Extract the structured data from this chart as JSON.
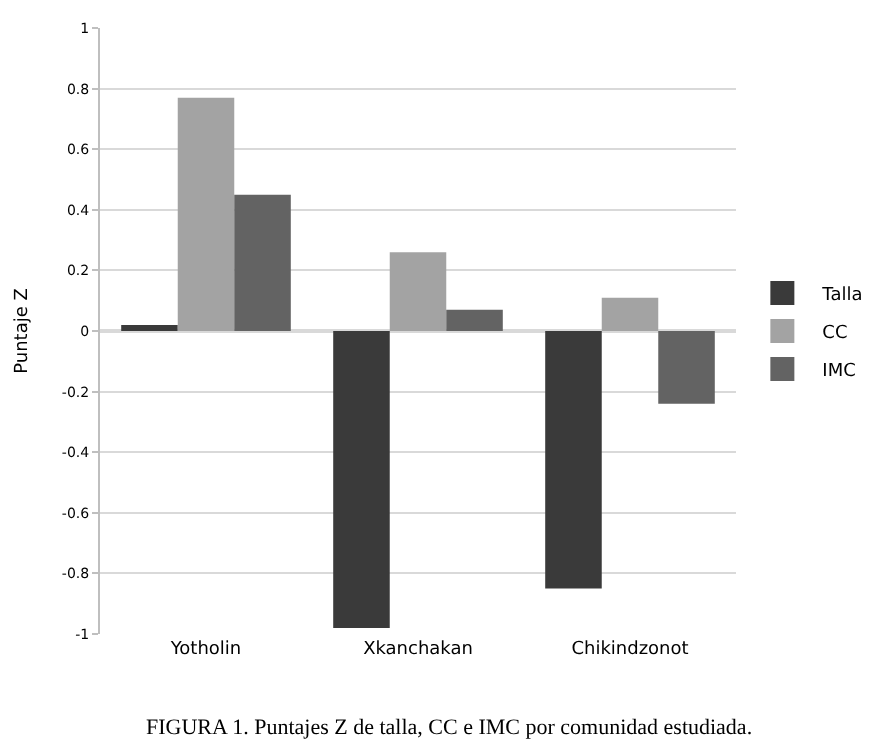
{
  "chart_data": {
    "type": "bar",
    "ylabel": "Puntaje Z",
    "categories": [
      "Yotholin",
      "Xkanchakan",
      "Chikindzonot"
    ],
    "series": [
      {
        "name": "Talla",
        "color": "#3a3a3a",
        "values": [
          0.02,
          -0.98,
          -0.85
        ]
      },
      {
        "name": "CC",
        "color": "#a3a3a3",
        "values": [
          0.77,
          0.26,
          0.11
        ]
      },
      {
        "name": "IMC",
        "color": "#636363",
        "values": [
          0.45,
          0.07,
          -0.24
        ]
      }
    ],
    "ylim": [
      -1,
      1
    ],
    "yticks": [
      -1,
      -0.8,
      -0.6,
      -0.4,
      -0.2,
      0,
      0.2,
      0.4,
      0.6,
      0.8,
      1
    ],
    "grid": "y",
    "legend": "right",
    "annotations": [
      "FIGURA 1. Puntajes Z de talla, CC e IMC por comunidad estudiada."
    ]
  }
}
